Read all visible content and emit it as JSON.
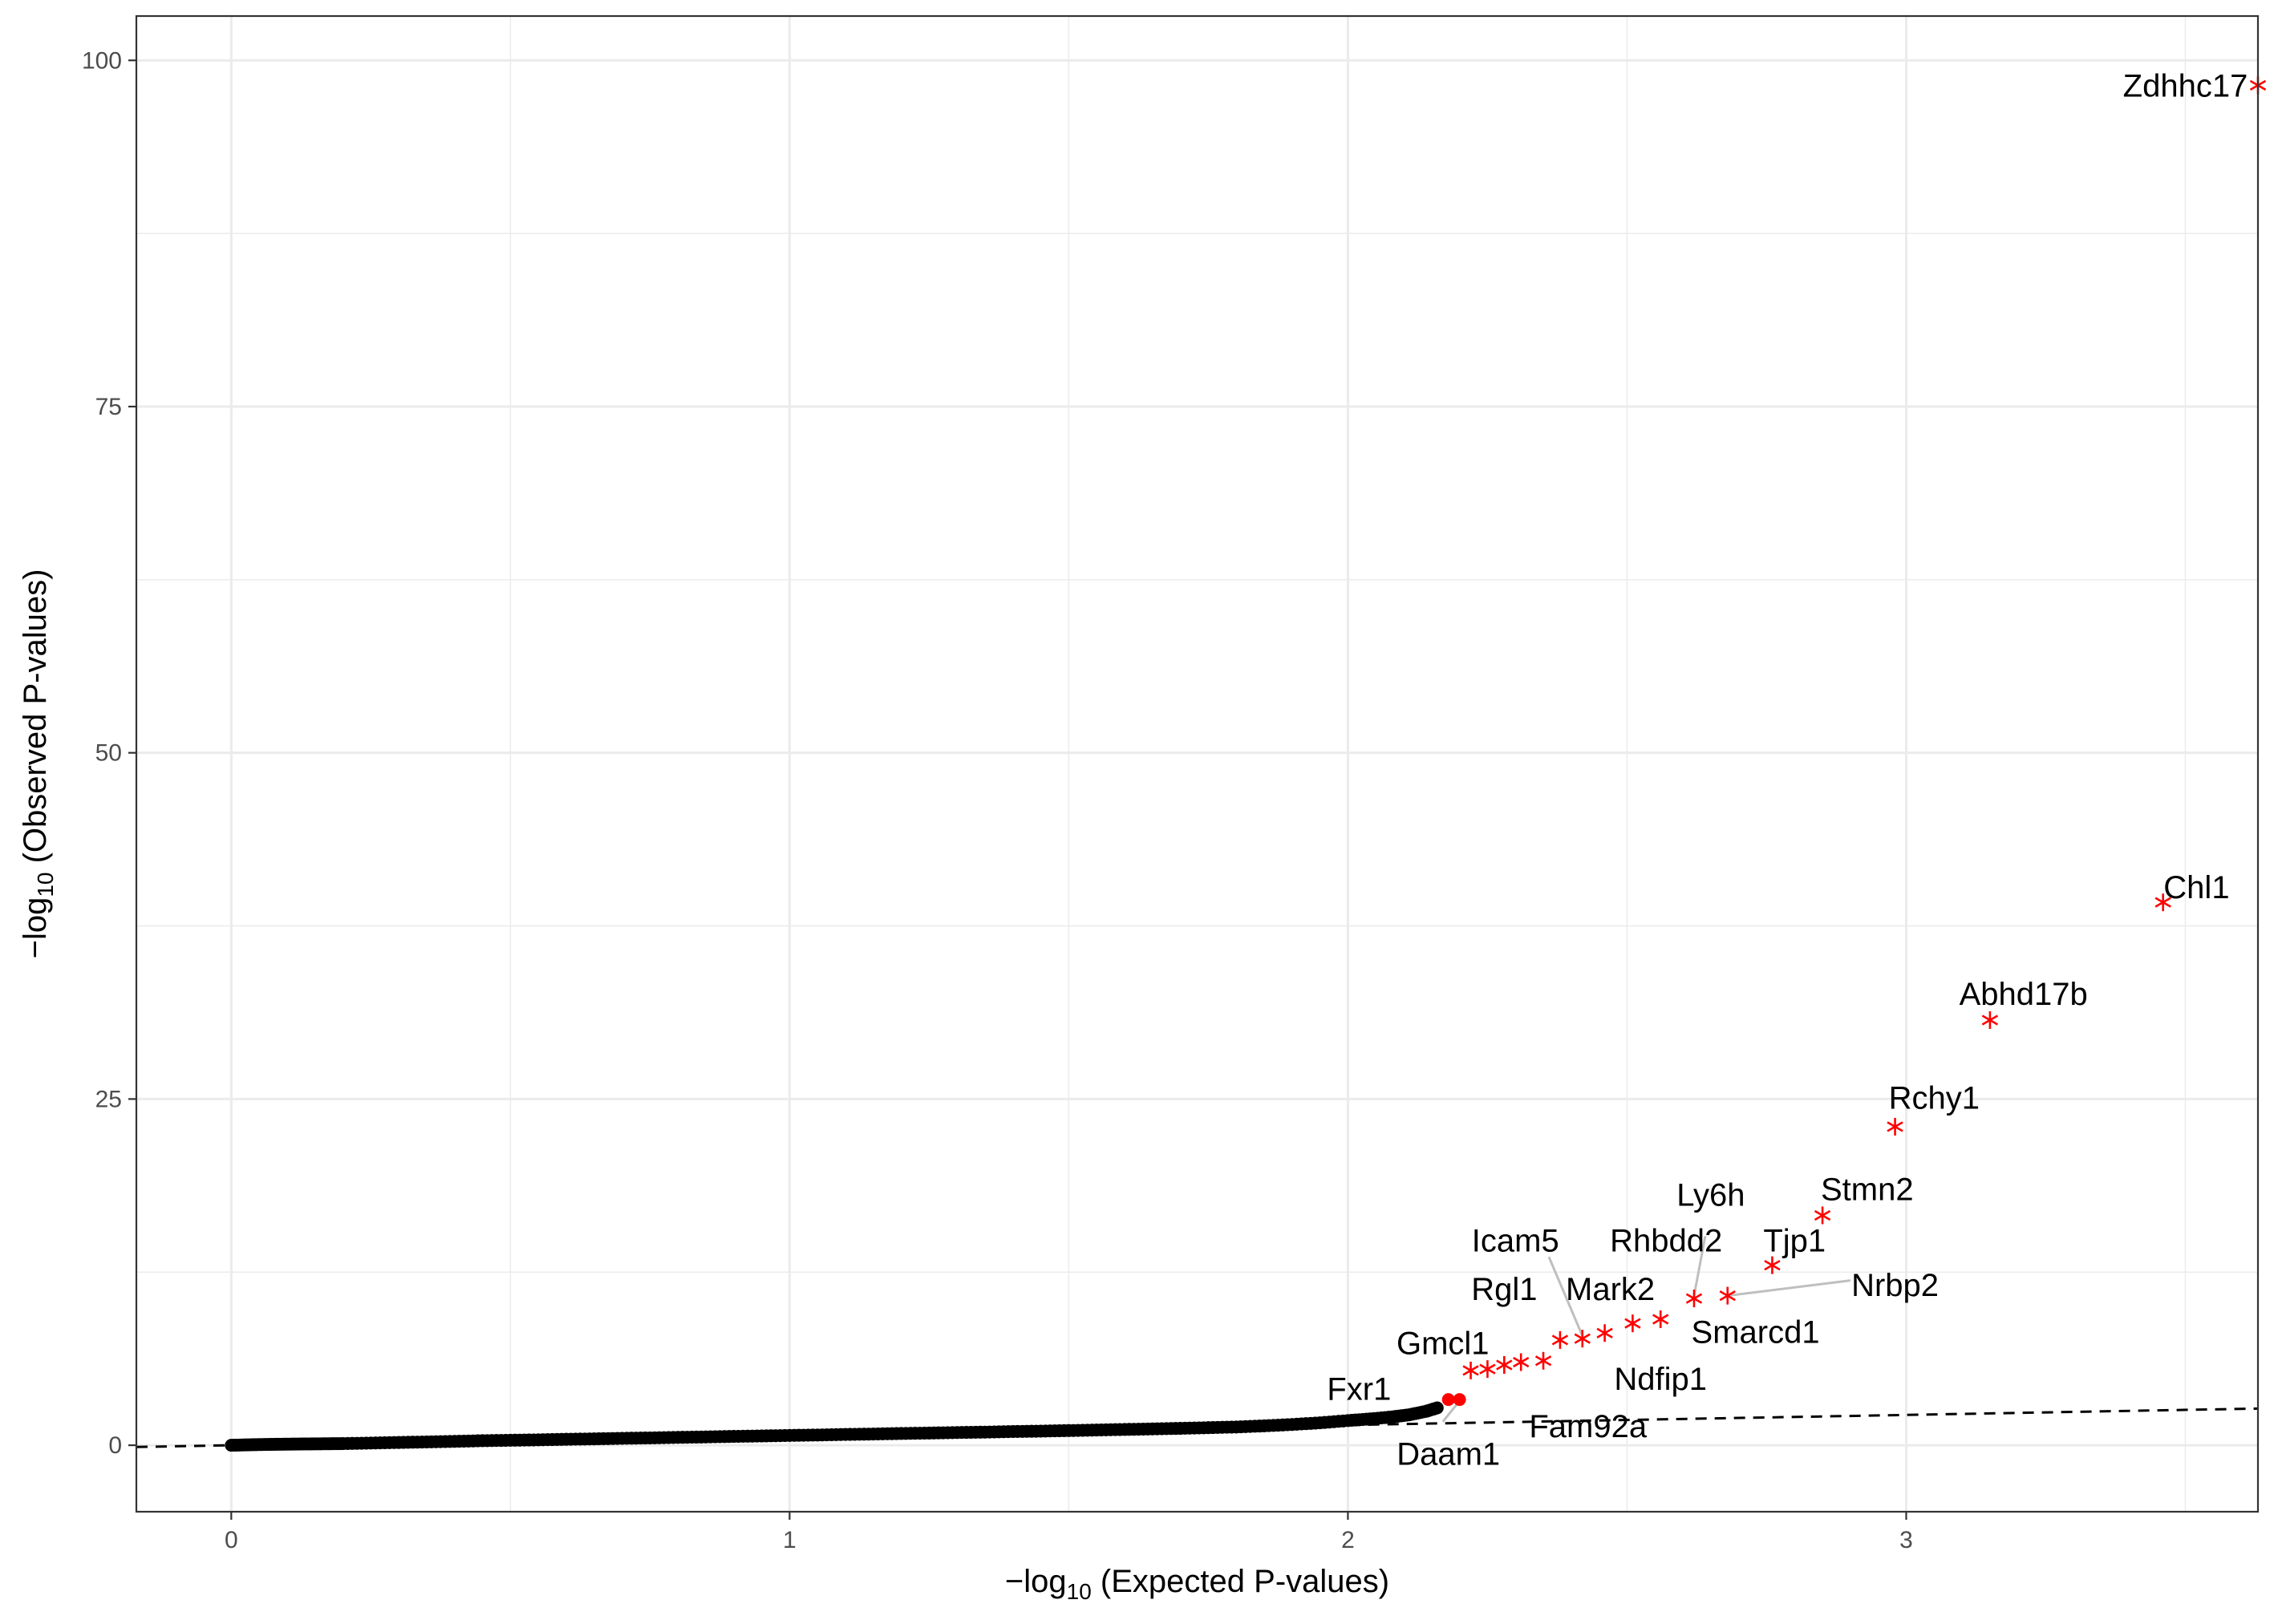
{
  "chart_data": {
    "type": "scatter",
    "title": "",
    "xlabel": {
      "prefix": "−log",
      "sub": "10",
      "suffix": " (Expected P-values)"
    },
    "ylabel": {
      "prefix": "−log",
      "sub": "10",
      "suffix": " (Observed P-values)"
    },
    "xlim": [
      -0.17,
      3.63
    ],
    "ylim": [
      -4.8,
      103.2
    ],
    "x_ticks": [
      0,
      1,
      2,
      3
    ],
    "y_ticks": [
      0,
      25,
      50,
      75,
      100
    ],
    "grid": true,
    "reference_line": {
      "style": "dashed",
      "slope": 0.73
    },
    "colors": {
      "background_points": "#000000",
      "highlight": "#ff0000",
      "grid": "#ebebeb",
      "reference": "#000000",
      "connector": "#bfbfbf"
    },
    "background_series": [
      [
        0.0,
        0.0
      ],
      [
        0.05,
        0.05
      ],
      [
        0.1,
        0.08
      ],
      [
        0.15,
        0.1
      ],
      [
        0.2,
        0.12
      ],
      [
        0.25,
        0.16
      ],
      [
        0.3,
        0.2
      ],
      [
        0.35,
        0.24
      ],
      [
        0.4,
        0.28
      ],
      [
        0.45,
        0.33
      ],
      [
        0.5,
        0.36
      ],
      [
        0.55,
        0.39
      ],
      [
        0.6,
        0.43
      ],
      [
        0.65,
        0.46
      ],
      [
        0.7,
        0.5
      ],
      [
        0.75,
        0.53
      ],
      [
        0.8,
        0.57
      ],
      [
        0.85,
        0.6
      ],
      [
        0.9,
        0.64
      ],
      [
        0.95,
        0.67
      ],
      [
        1.0,
        0.71
      ],
      [
        1.05,
        0.74
      ],
      [
        1.1,
        0.78
      ],
      [
        1.15,
        0.81
      ],
      [
        1.2,
        0.85
      ],
      [
        1.25,
        0.88
      ],
      [
        1.3,
        0.92
      ],
      [
        1.35,
        0.95
      ],
      [
        1.4,
        0.99
      ],
      [
        1.45,
        1.02
      ],
      [
        1.5,
        1.06
      ],
      [
        1.55,
        1.1
      ],
      [
        1.6,
        1.14
      ],
      [
        1.65,
        1.18
      ],
      [
        1.7,
        1.22
      ],
      [
        1.75,
        1.27
      ],
      [
        1.8,
        1.32
      ],
      [
        1.85,
        1.4
      ],
      [
        1.9,
        1.5
      ],
      [
        1.95,
        1.62
      ],
      [
        2.0,
        1.78
      ],
      [
        2.04,
        1.9
      ],
      [
        2.08,
        2.05
      ],
      [
        2.11,
        2.2
      ],
      [
        2.14,
        2.45
      ],
      [
        2.16,
        2.7
      ]
    ],
    "highlighted_points": [
      {
        "gene": "Fxr1",
        "x": 2.18,
        "y": 3.3,
        "marker": "circle"
      },
      {
        "gene": "Daam1",
        "x": 2.2,
        "y": 3.3,
        "marker": "circle"
      },
      {
        "gene": "Fam92a",
        "x": 2.22,
        "y": 5.4,
        "marker": "asterisk"
      },
      {
        "gene": "Gmcl1",
        "x": 2.25,
        "y": 5.5,
        "marker": "asterisk"
      },
      {
        "gene": "",
        "x": 2.28,
        "y": 5.8,
        "marker": "asterisk"
      },
      {
        "gene": "",
        "x": 2.31,
        "y": 6.0,
        "marker": "asterisk"
      },
      {
        "gene": "Ndfip1",
        "x": 2.35,
        "y": 6.1,
        "marker": "asterisk"
      },
      {
        "gene": "Rgl1",
        "x": 2.38,
        "y": 7.6,
        "marker": "asterisk"
      },
      {
        "gene": "Icam5",
        "x": 2.42,
        "y": 7.7,
        "marker": "asterisk"
      },
      {
        "gene": "Mark2",
        "x": 2.46,
        "y": 8.1,
        "marker": "asterisk"
      },
      {
        "gene": "",
        "x": 2.51,
        "y": 8.8,
        "marker": "asterisk"
      },
      {
        "gene": "Smarcd1",
        "x": 2.56,
        "y": 9.1,
        "marker": "asterisk"
      },
      {
        "gene": "Rhbdd2",
        "x": 2.62,
        "y": 10.6,
        "marker": "asterisk"
      },
      {
        "gene": "Nrbp2",
        "x": 2.68,
        "y": 10.8,
        "marker": "asterisk"
      },
      {
        "gene": "Tjp1",
        "x": 2.76,
        "y": 13.0,
        "marker": "asterisk"
      },
      {
        "gene": "Stmn2",
        "x": 2.85,
        "y": 16.6,
        "marker": "asterisk"
      },
      {
        "gene": "Rchy1",
        "x": 2.98,
        "y": 23.0,
        "marker": "asterisk"
      },
      {
        "gene": "Abhd17b",
        "x": 3.15,
        "y": 30.7,
        "marker": "asterisk"
      },
      {
        "gene": "Chl1",
        "x": 3.46,
        "y": 39.2,
        "marker": "asterisk"
      },
      {
        "gene": "Zdhhc17",
        "x": 3.63,
        "y": 98.2,
        "marker": "asterisk"
      }
    ],
    "annotations": [
      {
        "text": "Zdhhc17",
        "x": 3.5,
        "y": 98.2,
        "anchor": "middle"
      },
      {
        "text": "Chl1",
        "x": 3.52,
        "y": 40.3,
        "anchor": "middle"
      },
      {
        "text": "Abhd17b",
        "x": 3.21,
        "y": 32.6,
        "anchor": "middle"
      },
      {
        "text": "Rchy1",
        "x": 3.05,
        "y": 25.1,
        "anchor": "middle"
      },
      {
        "text": "Stmn2",
        "x": 2.93,
        "y": 18.5,
        "anchor": "middle"
      },
      {
        "text": "Ly6h",
        "x": 2.65,
        "y": 18.1,
        "anchor": "middle"
      },
      {
        "text": "Tjp1",
        "x": 2.8,
        "y": 14.8,
        "anchor": "middle"
      },
      {
        "text": "Rhbdd2",
        "x": 2.57,
        "y": 14.8,
        "anchor": "middle"
      },
      {
        "text": "Icam5",
        "x": 2.3,
        "y": 14.8,
        "anchor": "middle"
      },
      {
        "text": "Nrbp2",
        "x": 2.98,
        "y": 11.6,
        "anchor": "middle"
      },
      {
        "text": "Mark2",
        "x": 2.47,
        "y": 11.3,
        "anchor": "middle"
      },
      {
        "text": "Rgl1",
        "x": 2.28,
        "y": 11.3,
        "anchor": "middle"
      },
      {
        "text": "Smarcd1",
        "x": 2.73,
        "y": 8.2,
        "anchor": "middle"
      },
      {
        "text": "Gmcl1",
        "x": 2.17,
        "y": 7.4,
        "anchor": "middle"
      },
      {
        "text": "Ndfip1",
        "x": 2.56,
        "y": 4.8,
        "anchor": "middle"
      },
      {
        "text": "Fxr1",
        "x": 2.02,
        "y": 4.1,
        "anchor": "middle"
      },
      {
        "text": "Fam92a",
        "x": 2.43,
        "y": 1.4,
        "anchor": "middle"
      },
      {
        "text": "Daam1",
        "x": 2.18,
        "y": -0.6,
        "anchor": "middle"
      }
    ],
    "connectors": [
      {
        "from": [
          2.36,
          13.6
        ],
        "to": [
          2.42,
          7.9
        ]
      },
      {
        "from": [
          2.64,
          15.1
        ],
        "to": [
          2.62,
          10.8
        ]
      },
      {
        "from": [
          2.68,
          10.8
        ],
        "to": [
          2.9,
          11.9
        ]
      },
      {
        "from": [
          2.2,
          3.2
        ],
        "to": [
          2.17,
          1.7
        ]
      }
    ]
  }
}
